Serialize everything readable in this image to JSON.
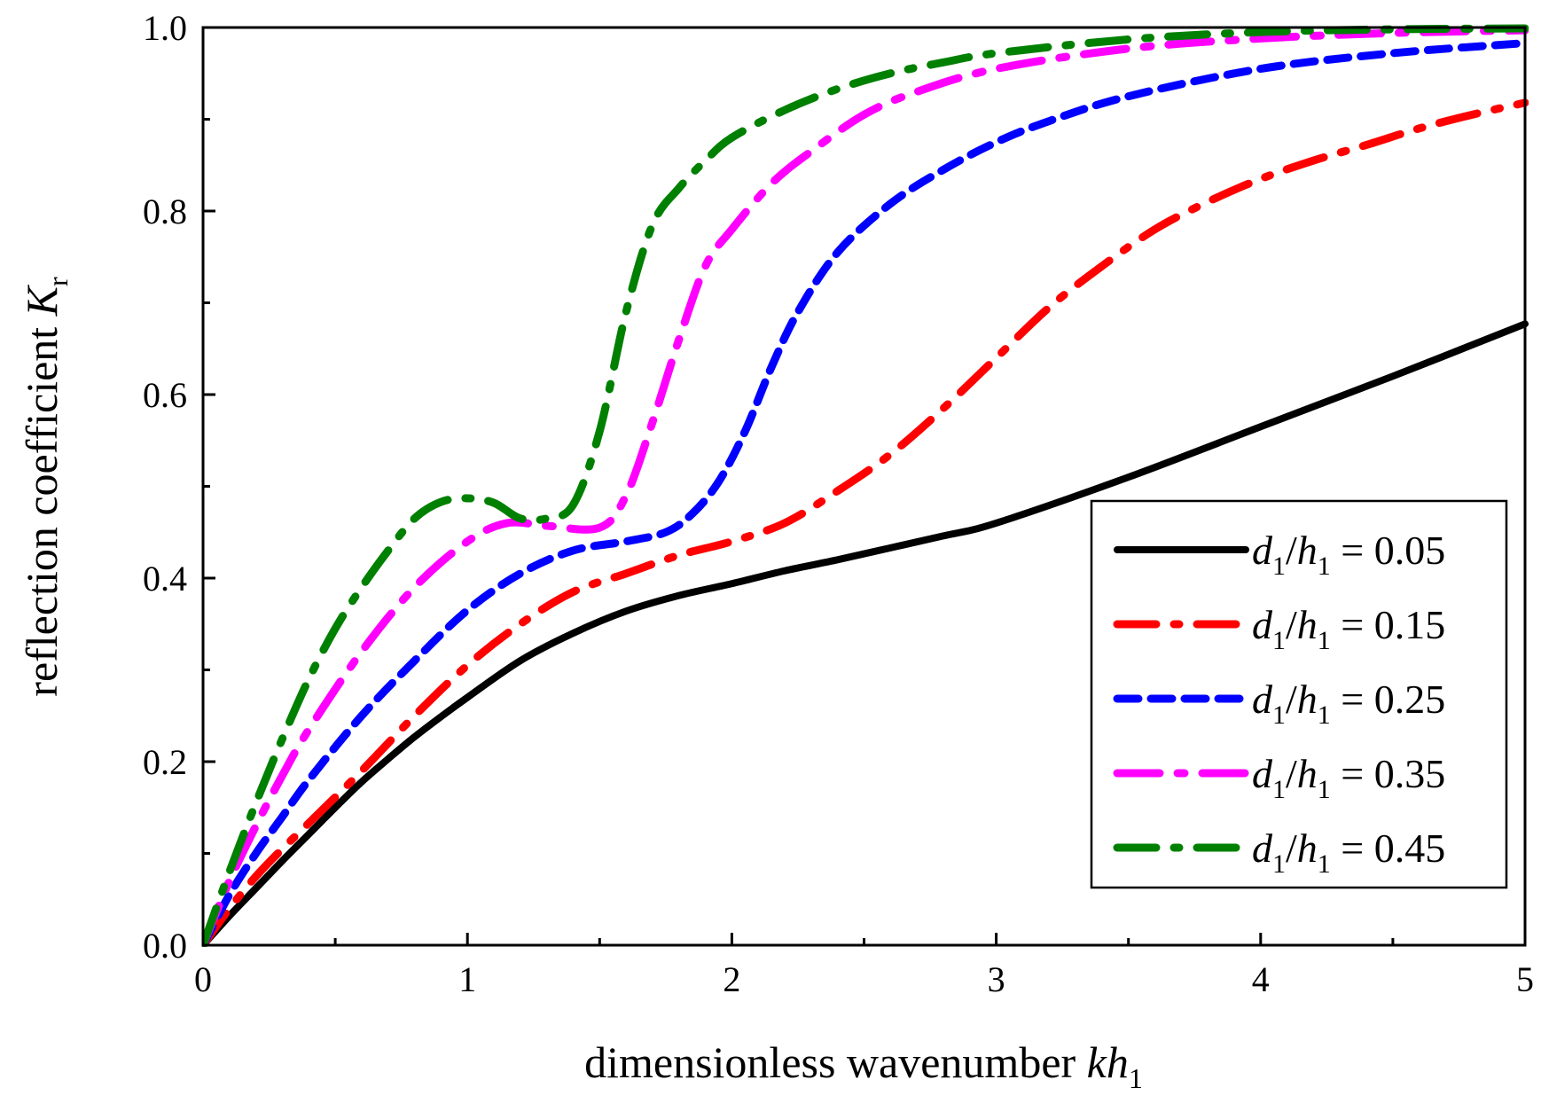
{
  "chart_data": {
    "type": "line",
    "title": "",
    "xlabel": {
      "main": "dimensionless wavenumber ",
      "italic": "kh",
      "sub": "1"
    },
    "ylabel": {
      "main": "reflection coefficient ",
      "italic": "K",
      "sub": "r"
    },
    "xlim": [
      0,
      5
    ],
    "ylim": [
      0,
      1.0
    ],
    "x_ticks": [
      0,
      1,
      2,
      3,
      4,
      5
    ],
    "x_tick_labels": [
      "0",
      "1",
      "2",
      "3",
      "4",
      "5"
    ],
    "y_ticks": [
      0.0,
      0.2,
      0.4,
      0.6,
      0.8,
      1.0
    ],
    "y_tick_labels": [
      "0.0",
      "0.2",
      "0.4",
      "0.6",
      "0.8",
      "1.0"
    ],
    "legend_position": "bottom-right",
    "series": [
      {
        "name": "d1/h1 = 0.05",
        "label": {
          "var1": "d",
          "sub1": "1",
          "slash": "/",
          "var2": "h",
          "sub2": "1",
          "rest": " = 0.05"
        },
        "color": "#000000",
        "style": "solid",
        "x": [
          0,
          0.1,
          0.2,
          0.3,
          0.4,
          0.5,
          0.6,
          0.7,
          0.8,
          0.9,
          1.0,
          1.2,
          1.4,
          1.6,
          1.8,
          2.0,
          2.2,
          2.4,
          2.6,
          2.8,
          3.0,
          3.5,
          4.0,
          4.5,
          5.0
        ],
        "y": [
          0,
          0.032,
          0.062,
          0.092,
          0.121,
          0.15,
          0.178,
          0.203,
          0.227,
          0.249,
          0.27,
          0.31,
          0.34,
          0.364,
          0.381,
          0.394,
          0.408,
          0.42,
          0.433,
          0.446,
          0.46,
          0.51,
          0.565,
          0.62,
          0.677
        ]
      },
      {
        "name": "d1/h1 = 0.15",
        "label": {
          "var1": "d",
          "sub1": "1",
          "slash": "/",
          "var2": "h",
          "sub2": "1",
          "rest": " = 0.15"
        },
        "color": "#ff0000",
        "style": "dash-dot",
        "x": [
          0,
          0.1,
          0.2,
          0.3,
          0.4,
          0.6,
          0.8,
          1.0,
          1.2,
          1.4,
          1.6,
          1.8,
          2.0,
          2.2,
          2.4,
          2.6,
          2.8,
          3.0,
          3.2,
          3.4,
          3.6,
          3.8,
          4.0,
          4.2,
          4.4,
          4.6,
          4.8,
          5.0
        ],
        "y": [
          0,
          0.04,
          0.075,
          0.105,
          0.133,
          0.19,
          0.25,
          0.305,
          0.35,
          0.385,
          0.405,
          0.425,
          0.44,
          0.46,
          0.495,
          0.535,
          0.585,
          0.64,
          0.695,
          0.74,
          0.78,
          0.81,
          0.835,
          0.855,
          0.872,
          0.89,
          0.905,
          0.918
        ]
      },
      {
        "name": "d1/h1 = 0.25",
        "label": {
          "var1": "d",
          "sub1": "1",
          "slash": "/",
          "var2": "h",
          "sub2": "1",
          "rest": " = 0.25"
        },
        "color": "#0000ff",
        "style": "short-dash",
        "x": [
          0,
          0.1,
          0.2,
          0.3,
          0.4,
          0.6,
          0.8,
          1.0,
          1.2,
          1.4,
          1.6,
          1.75,
          1.85,
          1.95,
          2.05,
          2.15,
          2.25,
          2.4,
          2.6,
          2.8,
          3.0,
          3.2,
          3.5,
          4.0,
          4.5,
          5.0
        ],
        "y": [
          0,
          0.055,
          0.1,
          0.14,
          0.18,
          0.25,
          0.31,
          0.365,
          0.405,
          0.43,
          0.44,
          0.45,
          0.47,
          0.505,
          0.56,
          0.63,
          0.69,
          0.755,
          0.808,
          0.845,
          0.875,
          0.898,
          0.925,
          0.955,
          0.972,
          0.983
        ]
      },
      {
        "name": "d1/h1 = 0.35",
        "label": {
          "var1": "d",
          "sub1": "1",
          "slash": "/",
          "var2": "h",
          "sub2": "1",
          "rest": " = 0.35"
        },
        "color": "#ff00ff",
        "style": "long-dash-dot",
        "x": [
          0,
          0.1,
          0.2,
          0.3,
          0.4,
          0.6,
          0.8,
          1.0,
          1.15,
          1.3,
          1.5,
          1.6,
          1.7,
          1.8,
          1.9,
          2.0,
          2.15,
          2.3,
          2.5,
          2.7,
          3.0,
          3.5,
          4.0,
          4.5,
          5.0
        ],
        "y": [
          0,
          0.07,
          0.13,
          0.185,
          0.235,
          0.32,
          0.39,
          0.44,
          0.46,
          0.457,
          0.455,
          0.49,
          0.57,
          0.66,
          0.74,
          0.78,
          0.83,
          0.865,
          0.905,
          0.93,
          0.955,
          0.977,
          0.988,
          0.994,
          0.997
        ]
      },
      {
        "name": "d1/h1 = 0.45",
        "label": {
          "var1": "d",
          "sub1": "1",
          "slash": "/",
          "var2": "h",
          "sub2": "1",
          "rest": " = 0.45"
        },
        "color": "#008000",
        "style": "dash-dot",
        "x": [
          0,
          0.1,
          0.2,
          0.3,
          0.4,
          0.5,
          0.6,
          0.7,
          0.8,
          0.9,
          1.0,
          1.1,
          1.2,
          1.3,
          1.4,
          1.5,
          1.6,
          1.7,
          1.8,
          1.9,
          2.0,
          2.2,
          2.4,
          2.6,
          2.8,
          3.0,
          3.5,
          4.0,
          4.5,
          5.0
        ],
        "y": [
          0,
          0.08,
          0.155,
          0.225,
          0.29,
          0.345,
          0.39,
          0.43,
          0.465,
          0.483,
          0.487,
          0.482,
          0.465,
          0.465,
          0.48,
          0.56,
          0.69,
          0.785,
          0.825,
          0.855,
          0.88,
          0.91,
          0.933,
          0.95,
          0.962,
          0.972,
          0.987,
          0.995,
          0.998,
          0.999
        ]
      }
    ]
  }
}
